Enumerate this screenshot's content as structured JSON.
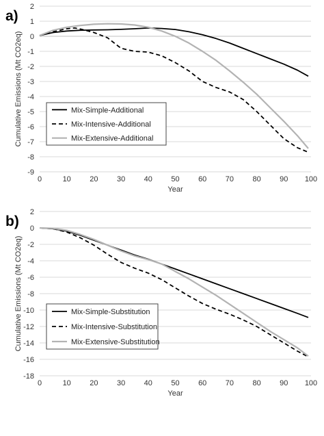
{
  "chart_data": [
    {
      "type": "line",
      "panel_label": "a)",
      "xlabel": "Year",
      "ylabel": "Cumulative Emissions (Mt CO2eq)",
      "xlim": [
        0,
        100
      ],
      "ylim": [
        -9,
        2
      ],
      "x_ticks": [
        0,
        10,
        20,
        30,
        40,
        50,
        60,
        70,
        80,
        90,
        100
      ],
      "y_ticks": [
        2,
        1,
        0,
        -1,
        -2,
        -3,
        -4,
        -5,
        -6,
        -7,
        -8,
        -9
      ],
      "grid": "horizontal",
      "legend_placement": "bottom-left",
      "series": [
        {
          "name": "Mix-Simple-Additional",
          "style": "solid",
          "color": "#000000",
          "x": [
            0,
            5,
            10,
            15,
            20,
            25,
            30,
            35,
            40,
            45,
            50,
            55,
            60,
            65,
            70,
            75,
            80,
            85,
            90,
            95,
            99
          ],
          "y": [
            0.05,
            0.25,
            0.35,
            0.4,
            0.42,
            0.43,
            0.46,
            0.5,
            0.55,
            0.52,
            0.45,
            0.3,
            0.1,
            -0.15,
            -0.45,
            -0.8,
            -1.15,
            -1.5,
            -1.85,
            -2.25,
            -2.65
          ]
        },
        {
          "name": "Mix-Intensive-Additional",
          "style": "dashed",
          "color": "#000000",
          "x": [
            0,
            5,
            10,
            13,
            15,
            20,
            25,
            30,
            35,
            40,
            45,
            50,
            55,
            60,
            65,
            70,
            75,
            80,
            85,
            90,
            95,
            99
          ],
          "y": [
            0.05,
            0.3,
            0.5,
            0.55,
            0.48,
            0.25,
            -0.1,
            -0.8,
            -1.0,
            -1.05,
            -1.3,
            -1.75,
            -2.3,
            -3.0,
            -3.4,
            -3.7,
            -4.2,
            -5.0,
            -5.9,
            -6.8,
            -7.4,
            -7.7
          ]
        },
        {
          "name": "Mix-Extensive-Additional",
          "style": "solid",
          "color": "#b3b3b3",
          "x": [
            0,
            5,
            10,
            15,
            20,
            25,
            30,
            35,
            40,
            45,
            50,
            55,
            60,
            65,
            70,
            75,
            80,
            85,
            90,
            95,
            99
          ],
          "y": [
            0.05,
            0.4,
            0.6,
            0.72,
            0.8,
            0.83,
            0.82,
            0.75,
            0.6,
            0.35,
            0.0,
            -0.45,
            -1.0,
            -1.6,
            -2.3,
            -3.05,
            -3.85,
            -4.75,
            -5.65,
            -6.6,
            -7.45
          ]
        }
      ]
    },
    {
      "type": "line",
      "panel_label": "b)",
      "xlabel": "Year",
      "ylabel": "Cumulative Emissions (Mt CO2eq)",
      "xlim": [
        0,
        100
      ],
      "ylim": [
        -18,
        2
      ],
      "x_ticks": [
        0,
        10,
        20,
        30,
        40,
        50,
        60,
        70,
        80,
        90,
        100
      ],
      "y_ticks": [
        2,
        0,
        -2,
        -4,
        -6,
        -8,
        -10,
        -12,
        -14,
        -16,
        -18
      ],
      "grid": "horizontal",
      "legend_placement": "bottom-left",
      "series": [
        {
          "name": "Mix-Simple-Substitution",
          "style": "solid",
          "color": "#000000",
          "x": [
            0,
            5,
            10,
            15,
            20,
            25,
            30,
            35,
            40,
            45,
            50,
            55,
            60,
            65,
            70,
            75,
            80,
            85,
            90,
            95,
            99
          ],
          "y": [
            0.0,
            -0.1,
            -0.4,
            -0.9,
            -1.5,
            -2.1,
            -2.7,
            -3.3,
            -3.8,
            -4.4,
            -5.0,
            -5.6,
            -6.2,
            -6.8,
            -7.4,
            -8.0,
            -8.6,
            -9.2,
            -9.8,
            -10.4,
            -10.9
          ]
        },
        {
          "name": "Mix-Intensive-Substitution",
          "style": "dashed",
          "color": "#000000",
          "x": [
            0,
            5,
            10,
            15,
            20,
            25,
            30,
            35,
            40,
            45,
            50,
            55,
            60,
            65,
            70,
            75,
            80,
            85,
            90,
            95,
            99
          ],
          "y": [
            0.0,
            -0.1,
            -0.5,
            -1.2,
            -2.1,
            -3.2,
            -4.2,
            -4.9,
            -5.5,
            -6.3,
            -7.3,
            -8.3,
            -9.2,
            -9.9,
            -10.5,
            -11.2,
            -12.0,
            -13.0,
            -14.0,
            -15.0,
            -15.7
          ]
        },
        {
          "name": "Mix-Extensive-Substitution",
          "style": "solid",
          "color": "#b3b3b3",
          "x": [
            0,
            5,
            10,
            15,
            20,
            25,
            30,
            35,
            40,
            45,
            50,
            55,
            60,
            65,
            70,
            75,
            80,
            85,
            90,
            95,
            99
          ],
          "y": [
            0.0,
            -0.05,
            -0.3,
            -0.8,
            -1.4,
            -2.1,
            -2.8,
            -3.4,
            -3.85,
            -4.4,
            -5.3,
            -6.2,
            -7.2,
            -8.2,
            -9.3,
            -10.4,
            -11.5,
            -12.6,
            -13.6,
            -14.6,
            -15.6
          ]
        }
      ]
    }
  ]
}
